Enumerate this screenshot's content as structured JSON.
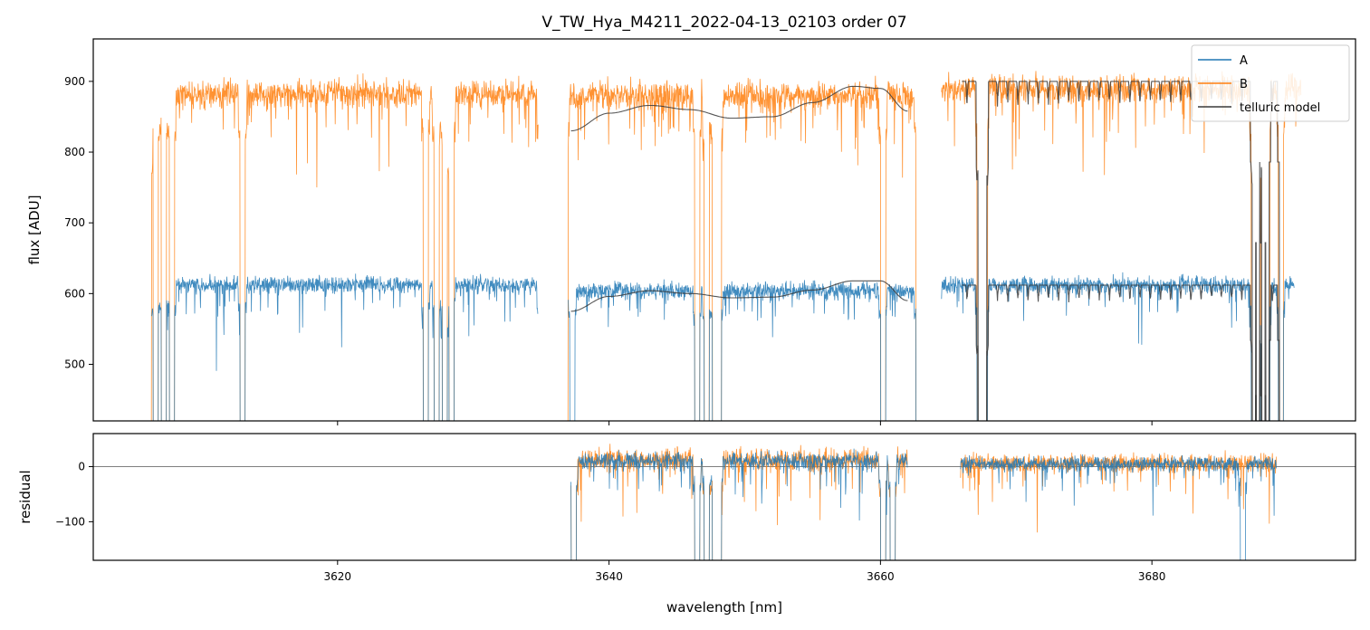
{
  "chart_data": [
    {
      "type": "line",
      "panel": "top",
      "title": "V_TW_Hya_M4211_2022-04-13_02103  order 07",
      "xlabel": "",
      "ylabel": "flux [ADU]",
      "xlim": [
        3602,
        3695
      ],
      "ylim": [
        420,
        960
      ],
      "yticks": [
        500,
        600,
        700,
        800,
        900
      ],
      "xticks": [
        3620,
        3640,
        3660,
        3680
      ],
      "legend_position": "top-right",
      "series": [
        {
          "name": "A",
          "color": "#1f77b4",
          "segments": [
            {
              "x_start": 3606.3,
              "x_end": 3634.8,
              "baseline": 612,
              "noise": 11,
              "seed": 11
            },
            {
              "x_start": 3637.0,
              "x_end": 3663.0,
              "baseline": 604,
              "noise": 11,
              "seed": 12
            },
            {
              "x_start": 3664.5,
              "x_end": 3690.5,
              "baseline": 612,
              "noise": 11,
              "seed": 13
            }
          ],
          "absorption_lines": [
            3606.6,
            3607.2,
            3607.8,
            3613.0,
            3626.5,
            3627.3,
            3627.9,
            3628.4,
            3635.0,
            3637.3,
            3646.5,
            3647.2,
            3647.8,
            3648.1,
            3660.2,
            3662.8,
            3667.3,
            3667.5,
            3667.7,
            3687.5,
            3687.8,
            3688.2,
            3688.5,
            3689.5
          ]
        },
        {
          "name": "B",
          "color": "#ff7f0e",
          "segments": [
            {
              "x_start": 3606.0,
              "x_end": 3634.8,
              "baseline": 882,
              "noise": 18,
              "seed": 21
            },
            {
              "x_start": 3636.8,
              "x_end": 3663.0,
              "baseline": 880,
              "noise": 18,
              "seed": 22
            },
            {
              "x_start": 3664.5,
              "x_end": 3691.0,
              "baseline": 890,
              "noise": 18,
              "seed": 23
            }
          ],
          "absorption_lines": [
            3606.1,
            3606.6,
            3607.2,
            3607.8,
            3613.0,
            3626.5,
            3627.3,
            3627.9,
            3628.4,
            3635.0,
            3636.8,
            3646.5,
            3647.2,
            3647.8,
            3648.1,
            3660.2,
            3662.8,
            3667.3,
            3667.5,
            3667.7,
            3687.5,
            3687.8,
            3688.2,
            3688.5,
            3689.5
          ]
        },
        {
          "name": "telluric model",
          "color": "#3a3a3a",
          "curves": [
            {
              "x_start": 3637.2,
              "x_end": 3662.0,
              "y_points": [
                [
                  3637.2,
                  575
                ],
                [
                  3640,
                  596
                ],
                [
                  3643,
                  604
                ],
                [
                  3646,
                  600
                ],
                [
                  3649,
                  594
                ],
                [
                  3652,
                  595
                ],
                [
                  3655,
                  605
                ],
                [
                  3658,
                  618
                ],
                [
                  3660,
                  618
                ],
                [
                  3662,
                  590
                ]
              ]
            },
            {
              "x_start": 3637.2,
              "x_end": 3662.0,
              "y_points": [
                [
                  3637.2,
                  830
                ],
                [
                  3640,
                  855
                ],
                [
                  3643,
                  866
                ],
                [
                  3646,
                  860
                ],
                [
                  3649,
                  848
                ],
                [
                  3652,
                  850
                ],
                [
                  3655,
                  870
                ],
                [
                  3658,
                  893
                ],
                [
                  3660,
                  890
                ],
                [
                  3662,
                  858
                ]
              ]
            },
            {
              "x_start": 3666.0,
              "x_end": 3689.5,
              "baseline": 612,
              "line_depth": 26,
              "spacing": 0.75,
              "seed": 31
            },
            {
              "x_start": 3666.0,
              "x_end": 3689.5,
              "baseline": 900,
              "line_depth": 38,
              "spacing": 0.75,
              "seed": 32
            }
          ],
          "deep_lines": [
            3667.3,
            3667.5,
            3667.7,
            3687.5,
            3687.8,
            3688.2,
            3688.5,
            3689.5
          ]
        }
      ]
    },
    {
      "type": "line",
      "panel": "bottom",
      "xlabel": "wavelength [nm]",
      "ylabel": "residual",
      "xlim": [
        3602,
        3695
      ],
      "ylim": [
        -170,
        60
      ],
      "yticks": [
        -100,
        0
      ],
      "xticks": [
        3620,
        3640,
        3660,
        3680
      ],
      "series": [
        {
          "name": "A",
          "color": "#1f77b4",
          "segments": [
            {
              "x_start": 3637.2,
              "x_end": 3662.0,
              "baseline": 10,
              "noise": 14,
              "seed": 41
            },
            {
              "x_start": 3665.9,
              "x_end": 3689.2,
              "baseline": 5,
              "noise": 12,
              "seed": 42
            }
          ],
          "absorption_lines": [
            3637.4,
            3646.5,
            3647.2,
            3647.8,
            3648.1,
            3660.2,
            3660.9,
            3686.7
          ]
        },
        {
          "name": "B",
          "color": "#ff7f0e",
          "segments": [
            {
              "x_start": 3637.2,
              "x_end": 3662.0,
              "baseline": 12,
              "noise": 18,
              "seed": 51
            },
            {
              "x_start": 3665.9,
              "x_end": 3689.2,
              "baseline": 6,
              "noise": 15,
              "seed": 52
            }
          ],
          "absorption_lines": [
            3637.4,
            3646.5,
            3647.2,
            3647.8,
            3648.1,
            3660.2,
            3660.9
          ]
        }
      ]
    }
  ]
}
